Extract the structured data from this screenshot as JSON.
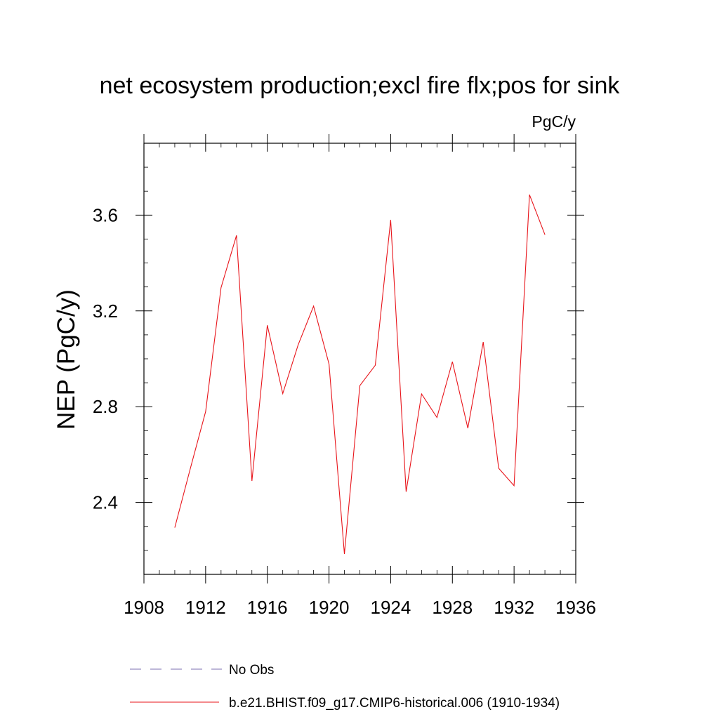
{
  "chart_data": {
    "type": "line",
    "title": "net ecosystem production;excl fire flx;pos for sink",
    "units": "PgC/y",
    "ylabel": "NEP  (PgC/y)",
    "xlabel": "",
    "xlim": [
      1908,
      1936
    ],
    "ylim": [
      2.1,
      3.9
    ],
    "xticks": [
      1908,
      1912,
      1916,
      1920,
      1924,
      1928,
      1932,
      1936
    ],
    "xtick_labels": [
      "1908",
      "1912",
      "1916",
      "1920",
      "1924",
      "1928",
      "1932",
      "1936"
    ],
    "yticks": [
      2.4,
      2.8,
      3.2,
      3.6
    ],
    "ytick_labels": [
      "2.4",
      "2.8",
      "3.2",
      "3.6"
    ],
    "grid": false,
    "legend_position": "bottom",
    "series": [
      {
        "name": "No Obs",
        "color": "#7b6fb0",
        "dash": "dashed",
        "x": [],
        "y": []
      },
      {
        "name": "b.e21.BHIST.f09_g17.CMIP6-historical.006 (1910-1934)",
        "color": "#e8141a",
        "dash": "solid",
        "x": [
          1910,
          1911,
          1912,
          1913,
          1914,
          1915,
          1916,
          1917,
          1918,
          1919,
          1920,
          1921,
          1922,
          1923,
          1924,
          1925,
          1926,
          1927,
          1928,
          1929,
          1930,
          1931,
          1932,
          1933,
          1934
        ],
        "y": [
          2.295,
          2.54,
          2.78,
          3.297,
          3.515,
          2.49,
          3.14,
          2.855,
          3.058,
          3.22,
          2.978,
          2.185,
          2.888,
          2.973,
          3.58,
          2.445,
          2.853,
          2.755,
          2.988,
          2.71,
          3.07,
          2.543,
          2.47,
          3.685,
          3.518
        ]
      }
    ]
  }
}
